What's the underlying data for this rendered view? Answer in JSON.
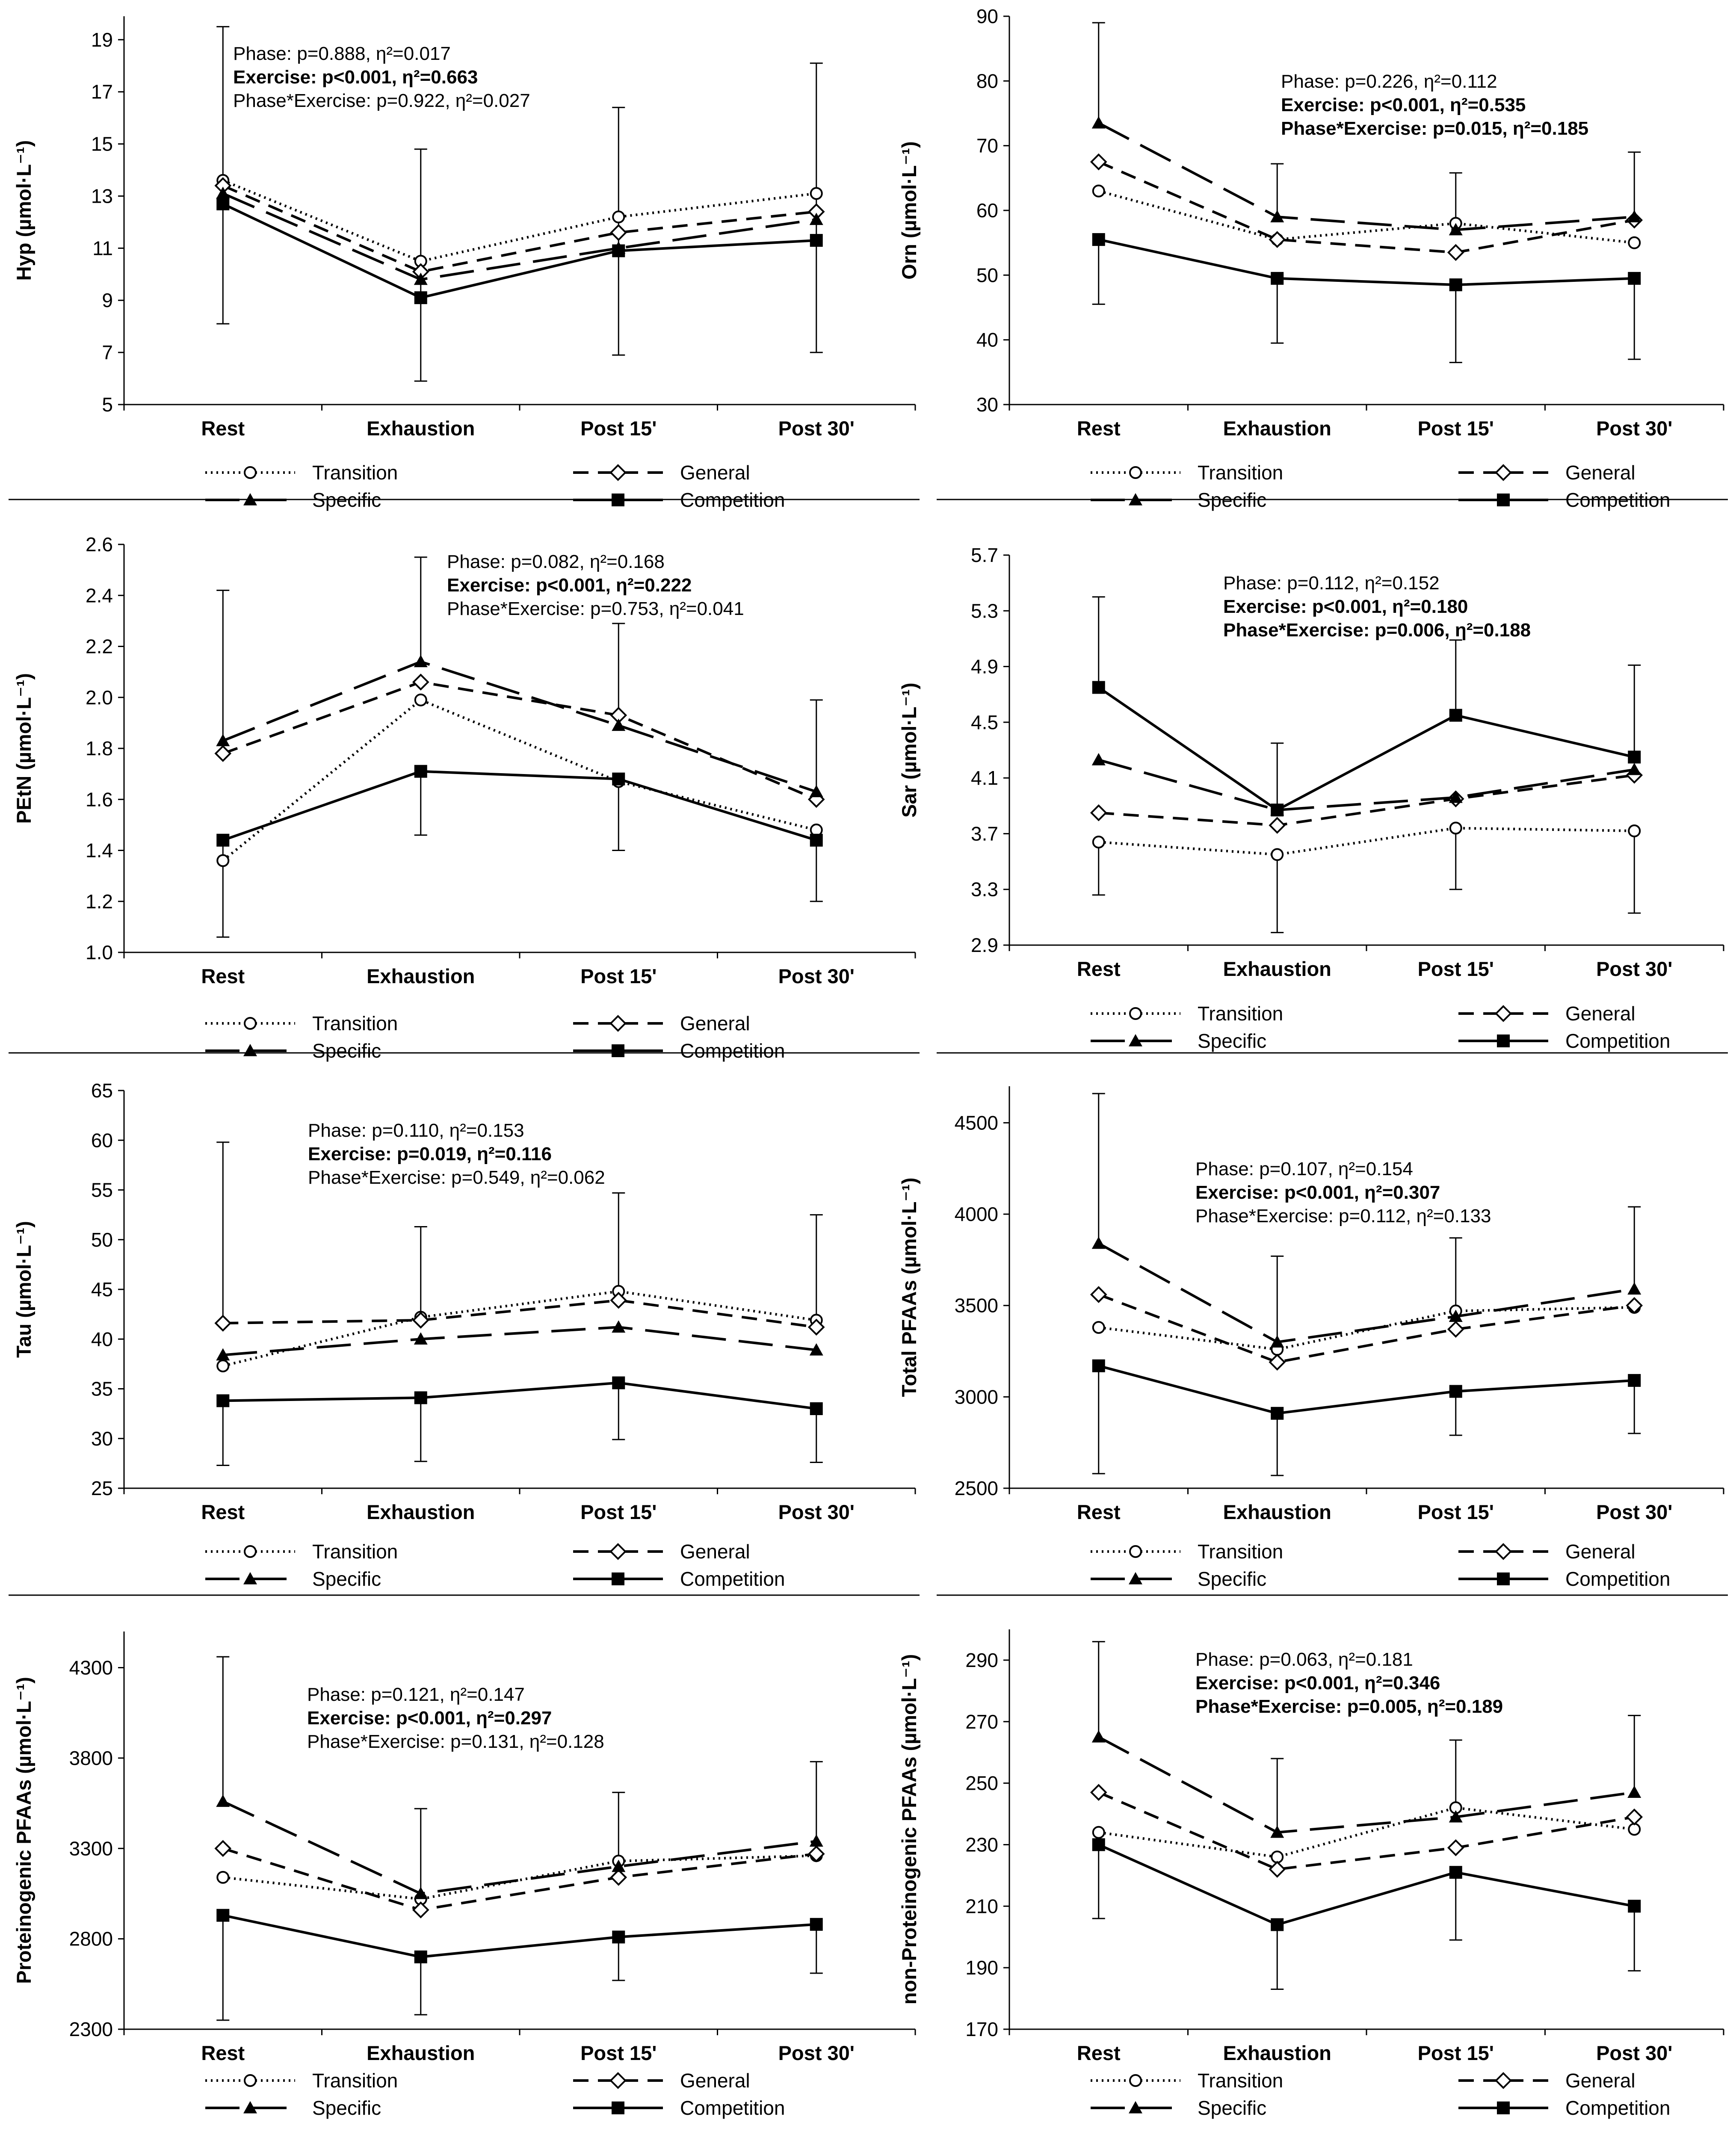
{
  "categories": [
    "Rest",
    "Exhaustion",
    "Post 15'",
    "Post 30'"
  ],
  "legend": [
    {
      "key": "transition",
      "label": "Transition"
    },
    {
      "key": "general",
      "label": "General"
    },
    {
      "key": "specific",
      "label": "Specific"
    },
    {
      "key": "competition",
      "label": "Competition"
    }
  ],
  "chart_data": [
    {
      "type": "line",
      "ylabel": "Hyp (µmol·L⁻¹)",
      "ylim": [
        5,
        19.9
      ],
      "yticks": [
        5,
        7,
        9,
        11,
        13,
        15,
        17,
        19
      ],
      "decimals": 0,
      "stats": [
        {
          "text": "Phase: p=0.888, η²=0.017",
          "bold": false
        },
        {
          "text": "Exercise: p<0.001, η²=0.663",
          "bold": true
        },
        {
          "text": "Phase*Exercise: p=0.922, η²=0.027",
          "bold": false
        }
      ],
      "series": [
        {
          "name": "Transition",
          "values": [
            13.6,
            10.5,
            12.2,
            13.1
          ]
        },
        {
          "name": "General",
          "values": [
            13.4,
            10.1,
            11.6,
            12.4
          ]
        },
        {
          "name": "Specific",
          "values": [
            13.1,
            9.8,
            11.0,
            12.1
          ]
        },
        {
          "name": "Competition",
          "values": [
            12.7,
            9.1,
            10.9,
            11.3
          ]
        }
      ],
      "errorbars": [
        {
          "x": 0,
          "from": 12.7,
          "to": 19.5
        },
        {
          "x": 0,
          "from": 12.7,
          "to": 8.1
        },
        {
          "x": 1,
          "from": 9.1,
          "to": 14.8
        },
        {
          "x": 1,
          "from": 9.1,
          "to": 5.9
        },
        {
          "x": 2,
          "from": 10.9,
          "to": 16.4
        },
        {
          "x": 2,
          "from": 10.9,
          "to": 6.9
        },
        {
          "x": 3,
          "from": 11.3,
          "to": 18.1
        },
        {
          "x": 3,
          "from": 11.3,
          "to": 7.0
        }
      ]
    },
    {
      "type": "line",
      "ylabel": "Orn (µmol·L⁻¹)",
      "ylim": [
        30,
        90
      ],
      "yticks": [
        30,
        40,
        50,
        60,
        70,
        80,
        90
      ],
      "decimals": 0,
      "stats": [
        {
          "text": "Phase: p=0.226, η²=0.112",
          "bold": false
        },
        {
          "text": "Exercise: p<0.001, η²=0.535",
          "bold": true
        },
        {
          "text": "Phase*Exercise: p=0.015, η²=0.185",
          "bold": true
        }
      ],
      "series": [
        {
          "name": "Transition",
          "values": [
            63,
            55.5,
            58,
            55
          ]
        },
        {
          "name": "General",
          "values": [
            67.5,
            55.5,
            53.5,
            58.5
          ]
        },
        {
          "name": "Specific",
          "values": [
            73.5,
            59,
            57,
            59
          ]
        },
        {
          "name": "Competition",
          "values": [
            55.5,
            49.5,
            48.5,
            49.5
          ]
        }
      ],
      "errorbars": [
        {
          "x": 0,
          "from": 73.5,
          "to": 89
        },
        {
          "x": 0,
          "from": 55.5,
          "to": 45.5
        },
        {
          "x": 1,
          "from": 59,
          "to": 67.2
        },
        {
          "x": 1,
          "from": 49.5,
          "to": 39.5
        },
        {
          "x": 2,
          "from": 57,
          "to": 65.8
        },
        {
          "x": 2,
          "from": 48.5,
          "to": 36.5
        },
        {
          "x": 3,
          "from": 59,
          "to": 69
        },
        {
          "x": 3,
          "from": 49.5,
          "to": 37
        }
      ]
    },
    {
      "type": "line",
      "ylabel": "PEtN (µmol·L⁻¹)",
      "ylim": [
        1.0,
        2.6
      ],
      "yticks": [
        1.0,
        1.2,
        1.4,
        1.6,
        1.8,
        2.0,
        2.2,
        2.4,
        2.6
      ],
      "decimals": 1,
      "stats": [
        {
          "text": "Phase: p=0.082, η²=0.168",
          "bold": false
        },
        {
          "text": "Exercise: p<0.001, η²=0.222",
          "bold": true
        },
        {
          "text": "Phase*Exercise: p=0.753, η²=0.041",
          "bold": false
        }
      ],
      "series": [
        {
          "name": "Transition",
          "values": [
            1.36,
            1.99,
            1.67,
            1.48
          ]
        },
        {
          "name": "General",
          "values": [
            1.78,
            2.06,
            1.93,
            1.6
          ]
        },
        {
          "name": "Specific",
          "values": [
            1.83,
            2.14,
            1.89,
            1.63
          ]
        },
        {
          "name": "Competition",
          "values": [
            1.44,
            1.71,
            1.68,
            1.44
          ]
        }
      ],
      "errorbars": [
        {
          "x": 0,
          "from": 1.83,
          "to": 2.42
        },
        {
          "x": 0,
          "from": 1.44,
          "to": 1.06
        },
        {
          "x": 1,
          "from": 2.14,
          "to": 2.55
        },
        {
          "x": 1,
          "from": 1.71,
          "to": 1.46
        },
        {
          "x": 2,
          "from": 1.93,
          "to": 2.29
        },
        {
          "x": 2,
          "from": 1.68,
          "to": 1.4
        },
        {
          "x": 3,
          "from": 1.6,
          "to": 1.99
        },
        {
          "x": 3,
          "from": 1.44,
          "to": 1.2
        }
      ]
    },
    {
      "type": "line",
      "ylabel": "Sar (µmol·L⁻¹)",
      "ylim": [
        2.9,
        5.7
      ],
      "yticks": [
        2.9,
        3.3,
        3.7,
        4.1,
        4.5,
        4.9,
        5.3,
        5.7
      ],
      "decimals": 1,
      "stats": [
        {
          "text": "Phase: p=0.112, η²=0.152",
          "bold": false
        },
        {
          "text": "Exercise: p<0.001, η²=0.180",
          "bold": true
        },
        {
          "text": "Phase*Exercise: p=0.006, η²=0.188",
          "bold": true
        }
      ],
      "series": [
        {
          "name": "Transition",
          "values": [
            3.64,
            3.55,
            3.74,
            3.72
          ]
        },
        {
          "name": "General",
          "values": [
            3.85,
            3.76,
            3.95,
            4.12
          ]
        },
        {
          "name": "Specific",
          "values": [
            4.23,
            3.87,
            3.96,
            4.16
          ]
        },
        {
          "name": "Competition",
          "values": [
            4.75,
            3.87,
            4.55,
            4.25
          ]
        }
      ],
      "errorbars": [
        {
          "x": 0,
          "from": 4.75,
          "to": 5.4
        },
        {
          "x": 0,
          "from": 3.64,
          "to": 3.26
        },
        {
          "x": 1,
          "from": 3.87,
          "to": 4.35
        },
        {
          "x": 1,
          "from": 3.55,
          "to": 2.99
        },
        {
          "x": 2,
          "from": 4.55,
          "to": 5.09
        },
        {
          "x": 2,
          "from": 3.74,
          "to": 3.3
        },
        {
          "x": 3,
          "from": 4.25,
          "to": 4.91
        },
        {
          "x": 3,
          "from": 3.72,
          "to": 3.13
        }
      ]
    },
    {
      "type": "line",
      "ylabel": "Tau (µmol·L⁻¹)",
      "ylim": [
        25,
        65
      ],
      "yticks": [
        25,
        30,
        35,
        40,
        45,
        50,
        55,
        60,
        65
      ],
      "decimals": 0,
      "stats": [
        {
          "text": "Phase: p=0.110, η²=0.153",
          "bold": false
        },
        {
          "text": "Exercise: p=0.019, η²=0.116",
          "bold": true
        },
        {
          "text": "Phase*Exercise: p=0.549, η²=0.062",
          "bold": false
        }
      ],
      "series": [
        {
          "name": "Transition",
          "values": [
            37.3,
            42.2,
            44.8,
            41.9
          ]
        },
        {
          "name": "General",
          "values": [
            41.6,
            41.9,
            43.9,
            41.2
          ]
        },
        {
          "name": "Specific",
          "values": [
            38.4,
            40.0,
            41.2,
            38.9
          ]
        },
        {
          "name": "Competition",
          "values": [
            33.8,
            34.1,
            35.6,
            33.0
          ]
        }
      ],
      "errorbars": [
        {
          "x": 0,
          "from": 41.6,
          "to": 59.8
        },
        {
          "x": 0,
          "from": 33.8,
          "to": 27.3
        },
        {
          "x": 1,
          "from": 42.2,
          "to": 51.3
        },
        {
          "x": 1,
          "from": 34.1,
          "to": 27.7
        },
        {
          "x": 2,
          "from": 44.8,
          "to": 54.7
        },
        {
          "x": 2,
          "from": 35.6,
          "to": 29.9
        },
        {
          "x": 3,
          "from": 41.9,
          "to": 52.5
        },
        {
          "x": 3,
          "from": 33.0,
          "to": 27.6
        }
      ]
    },
    {
      "type": "line",
      "ylabel": "Total PFAAs (µmol·L⁻¹)",
      "ylim": [
        2500,
        4700
      ],
      "yticks": [
        2500,
        3000,
        3500,
        4000,
        4500
      ],
      "decimals": 0,
      "stats": [
        {
          "text": "Phase: p=0.107, η²=0.154",
          "bold": false
        },
        {
          "text": "Exercise: p<0.001, η²=0.307",
          "bold": true
        },
        {
          "text": "Phase*Exercise: p=0.112, η²=0.133",
          "bold": false
        }
      ],
      "series": [
        {
          "name": "Transition",
          "values": [
            3380,
            3260,
            3470,
            3490
          ]
        },
        {
          "name": "General",
          "values": [
            3560,
            3190,
            3370,
            3500
          ]
        },
        {
          "name": "Specific",
          "values": [
            3840,
            3300,
            3440,
            3590
          ]
        },
        {
          "name": "Competition",
          "values": [
            3170,
            2910,
            3030,
            3090
          ]
        }
      ],
      "errorbars": [
        {
          "x": 0,
          "from": 3840,
          "to": 4660
        },
        {
          "x": 0,
          "from": 3170,
          "to": 2580
        },
        {
          "x": 1,
          "from": 3300,
          "to": 3770
        },
        {
          "x": 1,
          "from": 2910,
          "to": 2570
        },
        {
          "x": 2,
          "from": 3470,
          "to": 3870
        },
        {
          "x": 2,
          "from": 3030,
          "to": 2790
        },
        {
          "x": 3,
          "from": 3590,
          "to": 4040
        },
        {
          "x": 3,
          "from": 3090,
          "to": 2800
        }
      ]
    },
    {
      "type": "line",
      "ylabel": "Proteinogenic PFAAs (µmol·L⁻¹)",
      "ylim": [
        2300,
        4500
      ],
      "yticks": [
        2300,
        2800,
        3300,
        3800,
        4300
      ],
      "decimals": 0,
      "stats": [
        {
          "text": "Phase: p=0.121, η²=0.147",
          "bold": false
        },
        {
          "text": "Exercise: p<0.001, η²=0.297",
          "bold": true
        },
        {
          "text": "Phase*Exercise: p=0.131, η²=0.128",
          "bold": false
        }
      ],
      "series": [
        {
          "name": "Transition",
          "values": [
            3140,
            3020,
            3230,
            3260
          ]
        },
        {
          "name": "General",
          "values": [
            3300,
            2960,
            3140,
            3270
          ]
        },
        {
          "name": "Specific",
          "values": [
            3560,
            3050,
            3200,
            3340
          ]
        },
        {
          "name": "Competition",
          "values": [
            2930,
            2700,
            2810,
            2880
          ]
        }
      ],
      "errorbars": [
        {
          "x": 0,
          "from": 3560,
          "to": 4360
        },
        {
          "x": 0,
          "from": 2930,
          "to": 2350
        },
        {
          "x": 1,
          "from": 3050,
          "to": 3520
        },
        {
          "x": 1,
          "from": 2700,
          "to": 2380
        },
        {
          "x": 2,
          "from": 3230,
          "to": 3610
        },
        {
          "x": 2,
          "from": 2810,
          "to": 2570
        },
        {
          "x": 3,
          "from": 3340,
          "to": 3780
        },
        {
          "x": 3,
          "from": 2880,
          "to": 2610
        }
      ]
    },
    {
      "type": "line",
      "ylabel": "non-Proteinogenic PFAAs (µmol·L⁻¹)",
      "ylim": [
        170,
        300
      ],
      "yticks": [
        170,
        190,
        210,
        230,
        250,
        270,
        290
      ],
      "decimals": 0,
      "stats": [
        {
          "text": "Phase: p=0.063, η²=0.181",
          "bold": false
        },
        {
          "text": "Exercise: p<0.001, η²=0.346",
          "bold": true
        },
        {
          "text": "Phase*Exercise: p=0.005, η²=0.189",
          "bold": true
        }
      ],
      "series": [
        {
          "name": "Transition",
          "values": [
            234,
            226,
            242,
            235
          ]
        },
        {
          "name": "General",
          "values": [
            247,
            222,
            229,
            239
          ]
        },
        {
          "name": "Specific",
          "values": [
            265,
            234,
            239,
            247
          ]
        },
        {
          "name": "Competition",
          "values": [
            230,
            204,
            221,
            210
          ]
        }
      ],
      "errorbars": [
        {
          "x": 0,
          "from": 265,
          "to": 296
        },
        {
          "x": 0,
          "from": 230,
          "to": 206
        },
        {
          "x": 1,
          "from": 234,
          "to": 258
        },
        {
          "x": 1,
          "from": 204,
          "to": 183
        },
        {
          "x": 2,
          "from": 242,
          "to": 264
        },
        {
          "x": 2,
          "from": 221,
          "to": 199
        },
        {
          "x": 3,
          "from": 247,
          "to": 272
        },
        {
          "x": 3,
          "from": 210,
          "to": 189
        }
      ]
    }
  ]
}
